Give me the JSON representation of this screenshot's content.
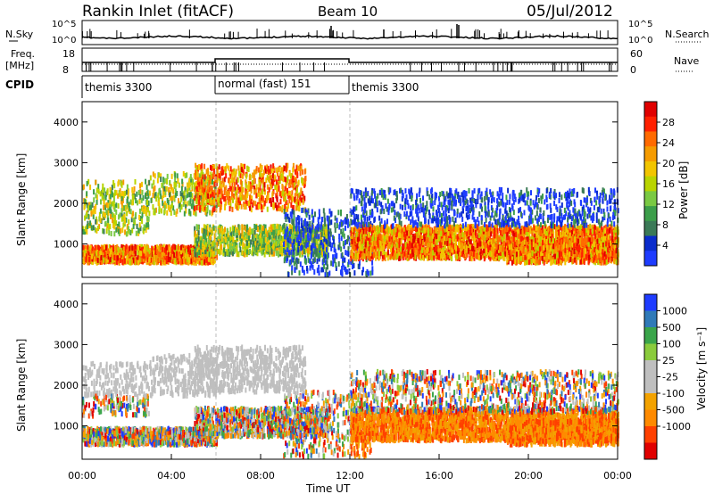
{
  "header": {
    "station": "Rankin Inlet (fitACF)",
    "beam": "Beam 10",
    "date": "05/Jul/2012"
  },
  "labels": {
    "nsky": "N.Sky",
    "nsearch": "N.Search",
    "freq": "Freq.",
    "freq_unit": "[MHz]",
    "nave": "Nave",
    "cpid": "CPID"
  },
  "colors": {
    "grey": "#bfbfbf",
    "colorbar_power": [
      "#1e3cff",
      "#0a2ccc",
      "#3b7a57",
      "#3c9e4a",
      "#7ac943",
      "#b9d400",
      "#f2c500",
      "#f59b00",
      "#ff6a00",
      "#ff2000",
      "#e00000"
    ],
    "colorbar_velocity": [
      "#e00000",
      "#ff4000",
      "#ff8a00",
      "#f3a200",
      "#bfbfbf",
      "#bfbfbf",
      "#8acb3c",
      "#3aa54a",
      "#2f7ab8",
      "#1e3cff"
    ]
  },
  "chart_data": [
    {
      "type": "table",
      "name": "noise",
      "left_ticks": [
        "10^5",
        "10^0"
      ],
      "right_ticks": [
        "10^5",
        "10^0"
      ]
    },
    {
      "type": "table",
      "name": "frequency",
      "left_ticks": [
        "18",
        "8"
      ],
      "right_ticks": [
        "60",
        "0"
      ]
    },
    {
      "type": "table",
      "name": "cpid",
      "segments": [
        {
          "label": "themis 3300",
          "start_hour": 0,
          "end_hour": 6
        },
        {
          "label": "normal (fast) 151",
          "start_hour": 6,
          "end_hour": 12
        },
        {
          "label": "themis 3300",
          "start_hour": 12,
          "end_hour": 24
        }
      ]
    },
    {
      "type": "heatmap",
      "name": "power",
      "ylabel": "Slant Range [km]",
      "ylim": [
        180,
        4500
      ],
      "yticks": [
        1000,
        2000,
        3000,
        4000
      ],
      "colorbar_label": "Power [dB]",
      "colorbar_ticks": [
        4,
        8,
        12,
        16,
        20,
        24,
        28
      ],
      "colorbar_range": [
        0,
        32
      ]
    },
    {
      "type": "heatmap",
      "name": "velocity",
      "ylabel": "Slant Range [km]",
      "ylim": [
        180,
        4500
      ],
      "yticks": [
        1000,
        2000,
        3000,
        4000
      ],
      "colorbar_label": "Velocity [m s⁻¹]",
      "colorbar_ticks": [
        "1000",
        "500",
        "100",
        "25",
        "-25",
        "-100",
        "-500",
        "-1000"
      ]
    },
    {
      "type": "table",
      "name": "time_axis",
      "xlabel": "Time UT",
      "xticks": [
        "00:00",
        "04:00",
        "08:00",
        "12:00",
        "16:00",
        "20:00",
        "00:00"
      ],
      "xlim_hours": [
        0,
        24
      ]
    }
  ]
}
